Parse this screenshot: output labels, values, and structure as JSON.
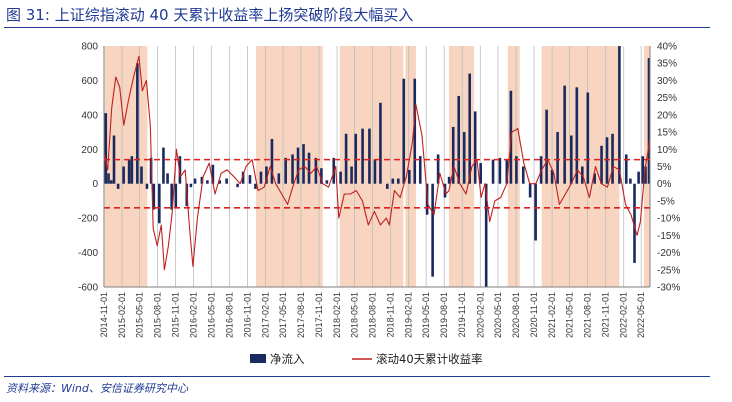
{
  "figure": {
    "label": "图 31:",
    "title": "上证综指滚动 40 天累计收益率上扬突破阶段大幅买入",
    "source": "资料来源：Wind、安信证券研究中心"
  },
  "colors": {
    "bar": "#1b2a5e",
    "line": "#c0201f",
    "shade": "#f7d5c0",
    "dash": "#e0201c",
    "title": "#1f3a93",
    "vline": "#bdbdbd"
  },
  "chart_data": {
    "type": "bar+line",
    "title": "",
    "left_axis": {
      "ylim": [
        -600,
        800
      ],
      "ticks": [
        -600,
        -400,
        -200,
        0,
        200,
        400,
        600,
        800
      ]
    },
    "right_axis": {
      "ylim": [
        -0.3,
        0.4
      ],
      "ticks": [
        "40%",
        "35%",
        "30%",
        "25%",
        "20%",
        "15%",
        "10%",
        "5%",
        "0%",
        "-5%",
        "-10%",
        "-15%",
        "-20%",
        "-25%",
        "-30%"
      ]
    },
    "x_ticks": [
      "2014-11-01",
      "2015-02-01",
      "2015-05-01",
      "2015-08-01",
      "2015-11-01",
      "2016-02-01",
      "2016-05-01",
      "2016-08-01",
      "2016-11-01",
      "2017-02-01",
      "2017-05-01",
      "2017-08-01",
      "2017-11-01",
      "2018-02-01",
      "2018-05-01",
      "2018-08-01",
      "2018-11-01",
      "2019-02-01",
      "2019-05-01",
      "2019-08-01",
      "2019-11-01",
      "2020-02-01",
      "2020-05-01",
      "2020-08-01",
      "2020-11-01",
      "2021-02-01",
      "2021-05-01",
      "2021-08-01",
      "2021-11-01",
      "2022-02-01",
      "2022-05-01"
    ],
    "x_start": "2014-11-01",
    "x_end": "2022-06-15",
    "dashed_lines_right_axis": [
      0.07,
      -0.07
    ],
    "shaded_periods": [
      [
        "2014-11-05",
        "2015-06-10"
      ],
      [
        "2016-12-15",
        "2017-11-20"
      ],
      [
        "2018-02-15",
        "2019-01-05"
      ],
      [
        "2019-01-15",
        "2019-03-10"
      ],
      [
        "2019-08-25",
        "2019-12-31"
      ],
      [
        "2020-06-20",
        "2020-08-20"
      ],
      [
        "2020-12-10",
        "2022-01-10"
      ],
      [
        "2022-05-15",
        "2022-06-15"
      ]
    ],
    "series": [
      {
        "name": "净流入",
        "type": "bar",
        "axis": "left",
        "points": [
          [
            "2014-11-10",
            410
          ],
          [
            "2014-11-24",
            60
          ],
          [
            "2014-12-08",
            20
          ],
          [
            "2014-12-22",
            280
          ],
          [
            "2015-01-12",
            -30
          ],
          [
            "2015-02-09",
            100
          ],
          [
            "2015-03-09",
            140
          ],
          [
            "2015-03-23",
            160
          ],
          [
            "2015-04-20",
            700
          ],
          [
            "2015-05-11",
            100
          ],
          [
            "2015-06-08",
            -30
          ],
          [
            "2015-06-29",
            150
          ],
          [
            "2015-07-13",
            -150
          ],
          [
            "2015-08-10",
            -230
          ],
          [
            "2015-08-31",
            210
          ],
          [
            "2015-09-21",
            60
          ],
          [
            "2015-10-12",
            -150
          ],
          [
            "2015-11-02",
            -140
          ],
          [
            "2015-11-23",
            160
          ],
          [
            "2015-12-28",
            -130
          ],
          [
            "2016-01-18",
            -20
          ],
          [
            "2016-02-08",
            30
          ],
          [
            "2016-03-14",
            40
          ],
          [
            "2016-04-11",
            20
          ],
          [
            "2016-05-09",
            110
          ],
          [
            "2016-06-13",
            20
          ],
          [
            "2016-07-18",
            30
          ],
          [
            "2016-09-12",
            -20
          ],
          [
            "2016-10-10",
            70
          ],
          [
            "2016-11-14",
            50
          ],
          [
            "2016-12-12",
            -30
          ],
          [
            "2017-01-09",
            70
          ],
          [
            "2017-02-06",
            100
          ],
          [
            "2017-03-06",
            260
          ],
          [
            "2017-04-10",
            60
          ],
          [
            "2017-05-15",
            150
          ],
          [
            "2017-06-19",
            170
          ],
          [
            "2017-07-17",
            210
          ],
          [
            "2017-08-14",
            230
          ],
          [
            "2017-09-11",
            180
          ],
          [
            "2017-10-16",
            150
          ],
          [
            "2017-11-13",
            90
          ],
          [
            "2017-12-11",
            20
          ],
          [
            "2018-01-15",
            150
          ],
          [
            "2018-02-19",
            70
          ],
          [
            "2018-03-19",
            290
          ],
          [
            "2018-04-16",
            100
          ],
          [
            "2018-05-07",
            290
          ],
          [
            "2018-06-11",
            320
          ],
          [
            "2018-07-16",
            320
          ],
          [
            "2018-08-13",
            140
          ],
          [
            "2018-09-10",
            470
          ],
          [
            "2018-10-15",
            -30
          ],
          [
            "2018-11-12",
            30
          ],
          [
            "2018-12-10",
            30
          ],
          [
            "2019-01-07",
            610
          ],
          [
            "2019-02-04",
            80
          ],
          [
            "2019-03-04",
            610
          ],
          [
            "2019-04-01",
            160
          ],
          [
            "2019-05-06",
            -180
          ],
          [
            "2019-06-03",
            -540
          ],
          [
            "2019-07-01",
            170
          ],
          [
            "2019-08-05",
            -80
          ],
          [
            "2019-08-26",
            40
          ],
          [
            "2019-09-16",
            330
          ],
          [
            "2019-10-14",
            510
          ],
          [
            "2019-11-11",
            300
          ],
          [
            "2019-12-09",
            640
          ],
          [
            "2020-01-06",
            420
          ],
          [
            "2020-02-03",
            120
          ],
          [
            "2020-03-02",
            -600
          ],
          [
            "2020-04-06",
            140
          ],
          [
            "2020-05-11",
            150
          ],
          [
            "2020-06-15",
            140
          ],
          [
            "2020-07-06",
            540
          ],
          [
            "2020-08-03",
            160
          ],
          [
            "2020-09-07",
            100
          ],
          [
            "2020-10-12",
            -80
          ],
          [
            "2020-11-09",
            -330
          ],
          [
            "2020-12-07",
            160
          ],
          [
            "2021-01-04",
            430
          ],
          [
            "2021-02-01",
            80
          ],
          [
            "2021-03-01",
            300
          ],
          [
            "2021-04-06",
            570
          ],
          [
            "2021-05-10",
            280
          ],
          [
            "2021-06-07",
            560
          ],
          [
            "2021-07-05",
            100
          ],
          [
            "2021-08-02",
            530
          ],
          [
            "2021-09-06",
            60
          ],
          [
            "2021-10-11",
            220
          ],
          [
            "2021-11-08",
            270
          ],
          [
            "2021-12-06",
            290
          ],
          [
            "2022-01-10",
            800
          ],
          [
            "2022-02-14",
            170
          ],
          [
            "2022-03-07",
            30
          ],
          [
            "2022-03-28",
            -460
          ],
          [
            "2022-04-18",
            70
          ],
          [
            "2022-05-09",
            160
          ],
          [
            "2022-05-23",
            100
          ],
          [
            "2022-06-10",
            730
          ]
        ]
      },
      {
        "name": "滚动40天累计收益率",
        "type": "line",
        "axis": "right",
        "points": [
          [
            "2014-11-01",
            0.09
          ],
          [
            "2014-11-20",
            0.04
          ],
          [
            "2014-12-10",
            0.22
          ],
          [
            "2014-12-31",
            0.31
          ],
          [
            "2015-01-20",
            0.28
          ],
          [
            "2015-02-10",
            0.17
          ],
          [
            "2015-03-05",
            0.24
          ],
          [
            "2015-04-01",
            0.31
          ],
          [
            "2015-04-28",
            0.37
          ],
          [
            "2015-05-15",
            0.27
          ],
          [
            "2015-06-05",
            0.3
          ],
          [
            "2015-06-25",
            0.17
          ],
          [
            "2015-07-10",
            -0.13
          ],
          [
            "2015-07-30",
            -0.18
          ],
          [
            "2015-08-20",
            -0.12
          ],
          [
            "2015-09-05",
            -0.25
          ],
          [
            "2015-09-25",
            -0.18
          ],
          [
            "2015-10-15",
            -0.08
          ],
          [
            "2015-11-05",
            0.1
          ],
          [
            "2015-11-25",
            0.02
          ],
          [
            "2015-12-20",
            0.04
          ],
          [
            "2016-01-10",
            -0.12
          ],
          [
            "2016-01-28",
            -0.24
          ],
          [
            "2016-02-20",
            -0.1
          ],
          [
            "2016-03-20",
            0.02
          ],
          [
            "2016-04-20",
            0.06
          ],
          [
            "2016-05-20",
            -0.03
          ],
          [
            "2016-06-20",
            0.03
          ],
          [
            "2016-07-20",
            0.04
          ],
          [
            "2016-08-25",
            0.02
          ],
          [
            "2016-09-25",
            0.0
          ],
          [
            "2016-10-25",
            0.05
          ],
          [
            "2016-11-25",
            0.07
          ],
          [
            "2016-12-25",
            -0.02
          ],
          [
            "2017-01-25",
            -0.01
          ],
          [
            "2017-02-25",
            0.05
          ],
          [
            "2017-03-25",
            0.0
          ],
          [
            "2017-04-25",
            -0.03
          ],
          [
            "2017-05-25",
            -0.06
          ],
          [
            "2017-06-20",
            -0.01
          ],
          [
            "2017-07-20",
            0.04
          ],
          [
            "2017-08-20",
            0.05
          ],
          [
            "2017-09-20",
            0.03
          ],
          [
            "2017-10-20",
            0.05
          ],
          [
            "2017-11-20",
            0.0
          ],
          [
            "2017-12-20",
            -0.01
          ],
          [
            "2018-01-25",
            0.05
          ],
          [
            "2018-02-10",
            -0.1
          ],
          [
            "2018-03-10",
            -0.03
          ],
          [
            "2018-04-10",
            -0.03
          ],
          [
            "2018-05-10",
            -0.02
          ],
          [
            "2018-06-10",
            -0.05
          ],
          [
            "2018-07-10",
            -0.12
          ],
          [
            "2018-08-10",
            -0.08
          ],
          [
            "2018-09-10",
            -0.12
          ],
          [
            "2018-10-10",
            -0.1
          ],
          [
            "2018-10-25",
            -0.12
          ],
          [
            "2018-11-20",
            -0.02
          ],
          [
            "2018-12-20",
            -0.04
          ],
          [
            "2019-01-20",
            0.02
          ],
          [
            "2019-02-20",
            0.12
          ],
          [
            "2019-03-10",
            0.23
          ],
          [
            "2019-04-10",
            0.14
          ],
          [
            "2019-05-10",
            -0.06
          ],
          [
            "2019-06-10",
            -0.09
          ],
          [
            "2019-07-10",
            0.03
          ],
          [
            "2019-08-10",
            -0.03
          ],
          [
            "2019-08-25",
            -0.02
          ],
          [
            "2019-09-20",
            0.05
          ],
          [
            "2019-10-20",
            0.0
          ],
          [
            "2019-11-20",
            -0.03
          ],
          [
            "2019-12-20",
            0.05
          ],
          [
            "2020-01-15",
            0.07
          ],
          [
            "2020-02-05",
            -0.04
          ],
          [
            "2020-02-25",
            0.0
          ],
          [
            "2020-03-20",
            -0.11
          ],
          [
            "2020-04-15",
            -0.05
          ],
          [
            "2020-05-15",
            -0.04
          ],
          [
            "2020-06-15",
            0.0
          ],
          [
            "2020-07-10",
            0.15
          ],
          [
            "2020-08-10",
            0.16
          ],
          [
            "2020-09-10",
            0.06
          ],
          [
            "2020-10-10",
            0.0
          ],
          [
            "2020-11-10",
            0.0
          ],
          [
            "2020-12-10",
            0.04
          ],
          [
            "2021-01-10",
            0.07
          ],
          [
            "2021-02-10",
            0.03
          ],
          [
            "2021-03-10",
            -0.06
          ],
          [
            "2021-04-10",
            -0.03
          ],
          [
            "2021-05-10",
            0.0
          ],
          [
            "2021-06-10",
            0.04
          ],
          [
            "2021-07-10",
            0.02
          ],
          [
            "2021-08-10",
            -0.04
          ],
          [
            "2021-09-10",
            0.05
          ],
          [
            "2021-10-10",
            0.0
          ],
          [
            "2021-11-10",
            -0.01
          ],
          [
            "2021-12-10",
            0.05
          ],
          [
            "2022-01-10",
            0.04
          ],
          [
            "2022-02-10",
            -0.06
          ],
          [
            "2022-03-10",
            -0.09
          ],
          [
            "2022-04-10",
            -0.15
          ],
          [
            "2022-04-27",
            -0.11
          ],
          [
            "2022-05-20",
            0.04
          ],
          [
            "2022-06-15",
            0.13
          ]
        ]
      }
    ],
    "legend": [
      {
        "key": "bar",
        "label": "净流入"
      },
      {
        "key": "line",
        "label": "滚动40天累计收益率"
      }
    ]
  }
}
